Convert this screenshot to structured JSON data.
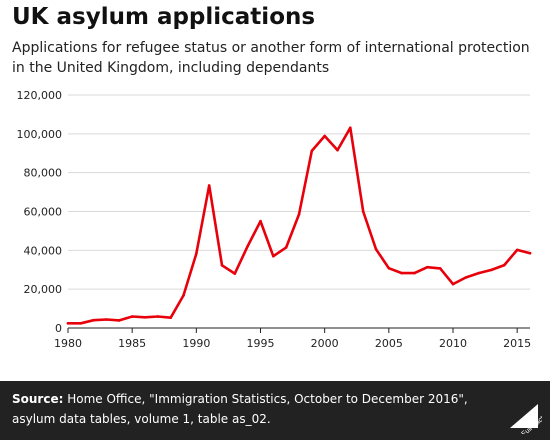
{
  "header": {
    "title": "UK asylum applications",
    "subtitle": "Applications for refugee status or another form of international protection in the United Kingdom, including dependants"
  },
  "chart_data": {
    "type": "line",
    "title": "UK asylum applications",
    "subtitle": "Applications for refugee status or another form of international protection in the United Kingdom, including dependants",
    "xlabel": "",
    "ylabel": "",
    "xlim": [
      1980,
      2016
    ],
    "ylim": [
      0,
      120000
    ],
    "x_ticks": [
      1980,
      1985,
      1990,
      1995,
      2000,
      2005,
      2010,
      2015
    ],
    "x_tick_labels": [
      "1980",
      "1985",
      "1990",
      "1995",
      "2000",
      "2005",
      "2010",
      "2015"
    ],
    "y_ticks": [
      0,
      20000,
      40000,
      60000,
      80000,
      100000,
      120000
    ],
    "y_tick_labels": [
      "0",
      "20,000",
      "40,000",
      "60,000",
      "80,000",
      "100,000",
      "120,000"
    ],
    "grid": true,
    "line_color": "#e8000b",
    "series": [
      {
        "x": [
          1980,
          1981,
          1982,
          1983,
          1984,
          1985,
          1986,
          1987,
          1988,
          1989,
          1990,
          1991,
          1992,
          1993,
          1994,
          1995,
          1996,
          1997,
          1998,
          1999,
          2000,
          2001,
          2002,
          2003,
          2004,
          2005,
          2006,
          2007,
          2008,
          2009,
          2010,
          2011,
          2012,
          2013,
          2014,
          2015,
          2016
        ],
        "values": [
          2400,
          2400,
          4000,
          4400,
          3900,
          5900,
          5500,
          5900,
          5300,
          16800,
          38200,
          73400,
          32300,
          28000,
          42200,
          55000,
          37000,
          41500,
          58500,
          91200,
          98900,
          91600,
          103100,
          60000,
          40600,
          30800,
          28300,
          28300,
          31300,
          30700,
          22600,
          26000,
          28300,
          29900,
          32400,
          40200,
          38500
        ]
      }
    ]
  },
  "footer": {
    "source_label": "Source:",
    "source_text": "Home Office, \"Immigration Statistics, October to December 2016\", asylum data tables, volume 1, table as_02.",
    "logo_text": "Full Fact"
  }
}
